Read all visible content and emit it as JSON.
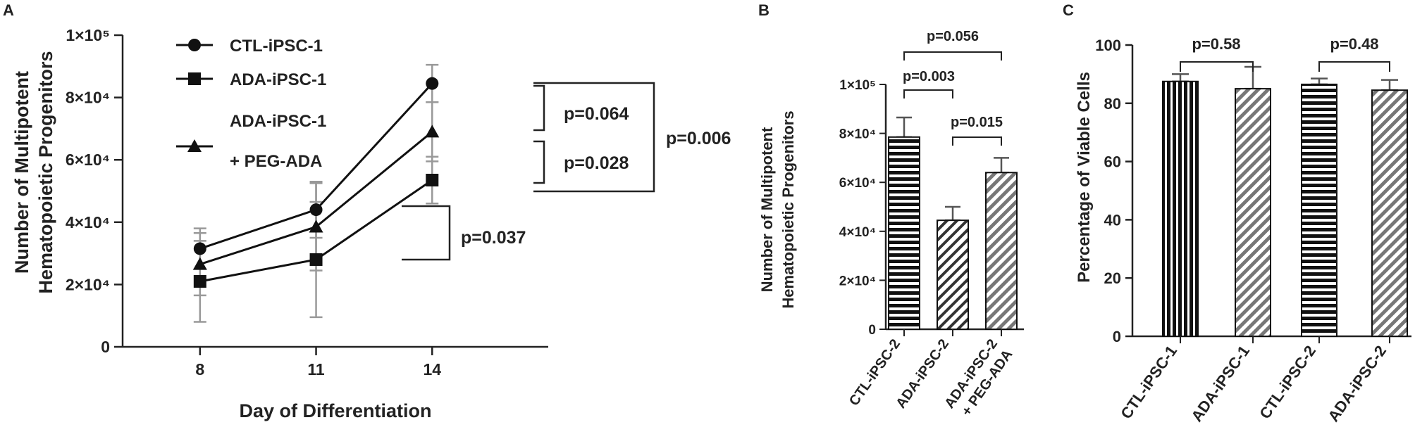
{
  "panels": {
    "A": {
      "letter": "A",
      "ylabel_line1": "Number of Multipotent",
      "ylabel_line2": "Hematopoietic Progenitors",
      "xlabel": "Day of Differentiation",
      "brackets": {
        "p1": "p=0.064",
        "p2": "p=0.028",
        "p3": "p=0.006",
        "p4": "p=0.037"
      },
      "legend_line2": "+ PEG-ADA"
    },
    "B": {
      "letter": "B",
      "ylabel_line1": "Number of Multipotent",
      "ylabel_line2": "Hematopoietic Progenitors",
      "xtick3_line2": "+ PEG-ADA",
      "brackets": {
        "p1": "p=0.056",
        "p2": "p=0.003",
        "p3": "p=0.015"
      }
    },
    "C": {
      "letter": "C",
      "ylabel": "Percentage of Viable Cells",
      "brackets": {
        "p1": "p=0.58",
        "p2": "p=0.48"
      }
    }
  },
  "chart_data": [
    {
      "type": "line",
      "x": [
        8,
        11,
        14
      ],
      "xticks": [
        "8",
        "11",
        "14"
      ],
      "xlim": [
        6,
        17
      ],
      "ylim": [
        0,
        100000
      ],
      "yticks": [
        "0",
        "2×10⁴",
        "4×10⁴",
        "6×10⁴",
        "8×10⁴",
        "1×10⁵"
      ],
      "xlabel": "Day of Differentiation",
      "ylabel": "Number of Multipotent Hematopoietic Progenitors",
      "legend_position": "top-left",
      "series": [
        {
          "name": "CTL-iPSC-1",
          "marker": "circle",
          "values": [
            31500,
            44000,
            84500
          ],
          "err": [
            6500,
            9000,
            6000
          ]
        },
        {
          "name": "ADA-iPSC-1",
          "marker": "square",
          "values": [
            21000,
            28000,
            53500
          ],
          "err": [
            13000,
            18500,
            7500
          ]
        },
        {
          "name": "ADA-iPSC-1",
          "marker": "triangle",
          "values": [
            26500,
            38500,
            69000
          ],
          "err": [
            10000,
            14000,
            9500
          ]
        }
      ]
    },
    {
      "type": "bar",
      "categories": [
        "CTL-iPSC-2",
        "ADA-iPSC-2",
        "ADA-iPSC-2"
      ],
      "values": [
        78500,
        44500,
        64000
      ],
      "err": [
        8000,
        5500,
        6000
      ],
      "ylim": [
        0,
        100000
      ],
      "yticks": [
        "0",
        "2×10⁴",
        "4×10⁴",
        "6×10⁴",
        "8×10⁴",
        "1×10⁵"
      ],
      "ylabel": "Number of Multipotent Hematopoietic Progenitors",
      "patterns": [
        "horizontal-stripes",
        "diagonal-stripes",
        "diagonal-stripes-gray"
      ]
    },
    {
      "type": "bar",
      "categories": [
        "CTL-iPSC-1",
        "ADA-iPSC-1",
        "CTL-iPSC-2",
        "ADA-iPSC-2"
      ],
      "values": [
        87.5,
        85,
        86.5,
        84.5
      ],
      "err": [
        2.5,
        7.5,
        2,
        3.5
      ],
      "ylim": [
        0,
        100
      ],
      "yticks": [
        "0",
        "20",
        "40",
        "60",
        "80",
        "100"
      ],
      "ylabel": "Percentage of Viable Cells",
      "patterns": [
        "vertical-stripes",
        "diagonal-stripes-gray",
        "horizontal-stripes",
        "diagonal-stripes-gray"
      ]
    }
  ]
}
